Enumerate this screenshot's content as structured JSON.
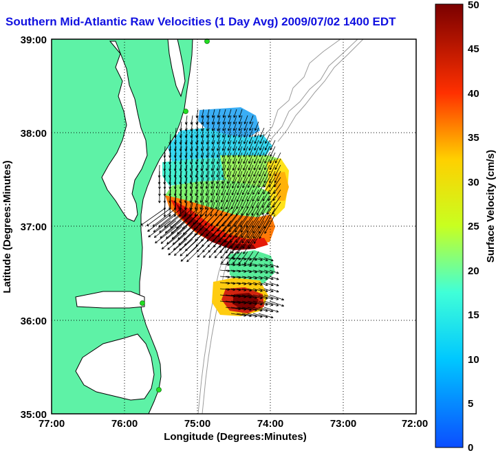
{
  "chart_data": {
    "type": "heatmap",
    "title": "Southern Mid-Atlantic Raw Velocities (1 Day Avg) 2009/07/02 1400 EDT",
    "xlabel": "Longitude (Degrees:Minutes)",
    "ylabel": "Latitude (Degrees:Minutes)",
    "colorbar_label": "Surface Velocity (cm/s)",
    "x_tick_labels": [
      "77:00",
      "76:00",
      "75:00",
      "74:00",
      "73:00",
      "72:00"
    ],
    "y_tick_labels": [
      "39:00",
      "38:00",
      "37:00",
      "36:00",
      "35:00"
    ],
    "colorbar_ticks": [
      "50",
      "45",
      "40",
      "35",
      "30",
      "25",
      "20",
      "15",
      "10",
      "5",
      "0"
    ],
    "xlim": [
      -77,
      -72
    ],
    "ylim": [
      35,
      39
    ],
    "clim": [
      0,
      50
    ],
    "grid": true,
    "colors": {
      "land": "#5ef2a6",
      "ocean": "#ffffff",
      "coast": "#000000",
      "bathymetry": "#9a9a9a",
      "station": "#22dd22",
      "title": "#1010e0"
    },
    "velocity_field_samples": [
      {
        "lon": -74.9,
        "lat": 38.15,
        "speed": 12
      },
      {
        "lon": -74.6,
        "lat": 38.05,
        "speed": 15
      },
      {
        "lon": -74.3,
        "lat": 37.95,
        "speed": 17
      },
      {
        "lon": -75.3,
        "lat": 37.6,
        "speed": 14
      },
      {
        "lon": -74.9,
        "lat": 37.5,
        "speed": 20
      },
      {
        "lon": -74.5,
        "lat": 37.5,
        "speed": 24
      },
      {
        "lon": -74.0,
        "lat": 37.45,
        "speed": 30
      },
      {
        "lon": -75.3,
        "lat": 37.15,
        "speed": 42
      },
      {
        "lon": -74.9,
        "lat": 37.0,
        "speed": 44
      },
      {
        "lon": -74.6,
        "lat": 36.9,
        "speed": 46
      },
      {
        "lon": -74.3,
        "lat": 36.95,
        "speed": 38
      },
      {
        "lon": -74.1,
        "lat": 37.1,
        "speed": 28
      },
      {
        "lon": -74.5,
        "lat": 36.55,
        "speed": 20
      },
      {
        "lon": -74.6,
        "lat": 36.25,
        "speed": 44
      },
      {
        "lon": -74.75,
        "lat": 36.1,
        "speed": 33
      }
    ],
    "stations": [
      {
        "lon": -74.9,
        "lat": 39.0
      },
      {
        "lon": -75.15,
        "lat": 38.25
      },
      {
        "lon": -75.75,
        "lat": 36.2
      },
      {
        "lon": -75.5,
        "lat": 35.25
      }
    ]
  }
}
